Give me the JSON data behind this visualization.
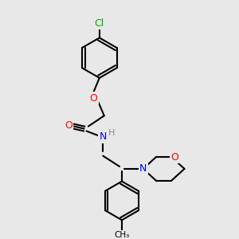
{
  "bg_color": "#e8e8e8",
  "bond_color": "#000000",
  "bond_width": 1.5,
  "atom_colors": {
    "C": "#000000",
    "N": "#0000ff",
    "O": "#ff0000",
    "Cl": "#00aa00",
    "H": "#888888"
  },
  "font_size": 9
}
